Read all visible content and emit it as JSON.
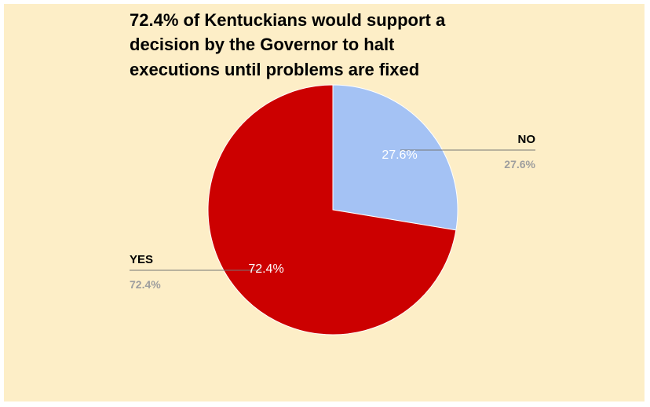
{
  "chart_data": {
    "type": "pie",
    "title": [
      "72.4% of Kentuckians would support a",
      "decision by the Governor to halt",
      "executions until problems are fixed"
    ],
    "categories": [
      "NO",
      "YES"
    ],
    "values": [
      27.6,
      72.4
    ],
    "value_labels": [
      "27.6%",
      "72.4%"
    ],
    "colors": [
      "#a4c2f4",
      "#cc0000"
    ],
    "start_angle_deg": 0,
    "direction": "clockwise",
    "legend": "callout labels",
    "background": "#fdeec7"
  }
}
